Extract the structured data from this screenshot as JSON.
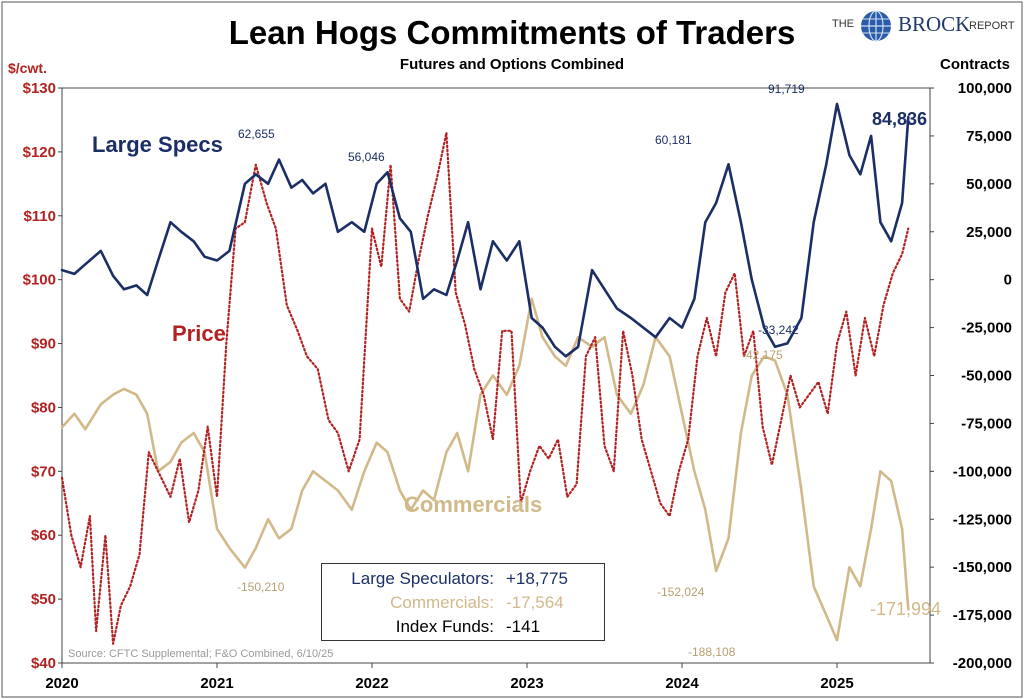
{
  "title": "Lean Hogs Commitments of Traders",
  "subtitle": "Futures and Options Combined",
  "unit_left": "$/cwt.",
  "unit_right": "Contracts",
  "logo": {
    "the": "THE",
    "brock": "BROCK",
    "report": "REPORT"
  },
  "labels": {
    "specs": "Large Specs",
    "price": "Price",
    "commercials": "Commercials"
  },
  "annotations": {
    "specs_peak_2021": "62,655",
    "specs_peak_2022": "56,046",
    "specs_peak_2024": "60,181",
    "specs_peak_2025": "91,719",
    "specs_low_2024": "-33,242",
    "specs_last": "84,836",
    "comm_low_2021": "-150,210",
    "comm_low_2024": "-152,024",
    "comm_low_2025": "-188,108",
    "comm_high_2024": "-42,175",
    "comm_last": "-171,994"
  },
  "legend": {
    "specs_label": "Large Speculators:",
    "specs_value": "+18,775",
    "comm_label": "Commercials:",
    "comm_value": "-17,564",
    "index_label": "Index Funds:",
    "index_value": "-141"
  },
  "source": "Source: CFTC Supplemental; F&O Combined, 6/10/25",
  "colors": {
    "specs": "#1b2f66",
    "price": "#b22222",
    "commercials": "#d2b98a",
    "axis_left": "#b22222",
    "axis_right": "#000000"
  },
  "chart_data": {
    "type": "line",
    "x_ticks": [
      "2020",
      "2021",
      "2022",
      "2023",
      "2024",
      "2025"
    ],
    "x_range": [
      2020.0,
      2025.6
    ],
    "y_left": {
      "label": "$/cwt.",
      "range": [
        40,
        130
      ],
      "ticks": [
        40,
        50,
        60,
        70,
        80,
        90,
        100,
        110,
        120,
        130
      ],
      "tick_labels": [
        "$40",
        "$50",
        "$60",
        "$70",
        "$80",
        "$90",
        "$100",
        "$110",
        "$120",
        "$130"
      ]
    },
    "y_right": {
      "label": "Contracts",
      "range": [
        -200000,
        100000
      ],
      "ticks": [
        -200000,
        -175000,
        -150000,
        -125000,
        -100000,
        -75000,
        -50000,
        -25000,
        0,
        25000,
        50000,
        75000,
        100000
      ],
      "tick_labels": [
        "-200,000",
        "-175,000",
        "-150,000",
        "-125,000",
        "-100,000",
        "-75,000",
        "-50,000",
        "-25,000",
        "0",
        "25,000",
        "50,000",
        "75,000",
        "100,000"
      ]
    },
    "grid": false,
    "series": [
      {
        "name": "Large Specs",
        "axis": "right",
        "style": "solid",
        "x": [
          2020.0,
          2020.08,
          2020.15,
          2020.25,
          2020.33,
          2020.4,
          2020.48,
          2020.55,
          2020.62,
          2020.7,
          2020.77,
          2020.85,
          2020.92,
          2021.0,
          2021.08,
          2021.18,
          2021.25,
          2021.33,
          2021.4,
          2021.48,
          2021.55,
          2021.62,
          2021.7,
          2021.78,
          2021.87,
          2021.95,
          2022.03,
          2022.1,
          2022.18,
          2022.25,
          2022.33,
          2022.4,
          2022.48,
          2022.55,
          2022.62,
          2022.7,
          2022.78,
          2022.87,
          2022.95,
          2023.03,
          2023.1,
          2023.18,
          2023.25,
          2023.33,
          2023.42,
          2023.5,
          2023.58,
          2023.67,
          2023.75,
          2023.83,
          2023.92,
          2024.0,
          2024.08,
          2024.15,
          2024.22,
          2024.3,
          2024.38,
          2024.45,
          2024.53,
          2024.6,
          2024.68,
          2024.77,
          2024.85,
          2024.93,
          2025.0,
          2025.08,
          2025.15,
          2025.22,
          2025.28,
          2025.35,
          2025.42,
          2025.46
        ],
        "y": [
          5000,
          3000,
          8000,
          15000,
          2000,
          -5000,
          -3000,
          -8000,
          10000,
          30000,
          25000,
          20000,
          12000,
          10000,
          15000,
          50000,
          55000,
          50000,
          62655,
          48000,
          52000,
          45000,
          50000,
          25000,
          30000,
          25000,
          50000,
          56046,
          32000,
          25000,
          -10000,
          -5000,
          -8000,
          10000,
          30000,
          -5000,
          20000,
          10000,
          20000,
          -20000,
          -25000,
          -35000,
          -40000,
          -35000,
          5000,
          -5000,
          -15000,
          -20000,
          -25000,
          -30000,
          -20000,
          -25000,
          -10000,
          30000,
          40000,
          60181,
          30000,
          0,
          -25000,
          -35000,
          -33242,
          -20000,
          30000,
          60000,
          91719,
          65000,
          55000,
          75000,
          30000,
          20000,
          40000,
          84836
        ]
      },
      {
        "name": "Commercials",
        "axis": "right",
        "style": "solid",
        "x": [
          2020.0,
          2020.08,
          2020.15,
          2020.25,
          2020.33,
          2020.4,
          2020.48,
          2020.55,
          2020.62,
          2020.7,
          2020.77,
          2020.85,
          2020.92,
          2021.0,
          2021.08,
          2021.18,
          2021.25,
          2021.33,
          2021.4,
          2021.48,
          2021.55,
          2021.62,
          2021.7,
          2021.78,
          2021.87,
          2021.95,
          2022.03,
          2022.1,
          2022.18,
          2022.25,
          2022.33,
          2022.4,
          2022.48,
          2022.55,
          2022.62,
          2022.7,
          2022.78,
          2022.87,
          2022.95,
          2023.03,
          2023.1,
          2023.18,
          2023.25,
          2023.33,
          2023.42,
          2023.5,
          2023.58,
          2023.67,
          2023.75,
          2023.83,
          2023.92,
          2024.0,
          2024.08,
          2024.15,
          2024.22,
          2024.3,
          2024.38,
          2024.45,
          2024.53,
          2024.6,
          2024.68,
          2024.77,
          2024.85,
          2024.93,
          2025.0,
          2025.08,
          2025.15,
          2025.22,
          2025.28,
          2025.35,
          2025.42,
          2025.46
        ],
        "y": [
          -77000,
          -70000,
          -78000,
          -65000,
          -60000,
          -57000,
          -60000,
          -70000,
          -100000,
          -95000,
          -85000,
          -80000,
          -90000,
          -130000,
          -140000,
          -150210,
          -140000,
          -125000,
          -135000,
          -130000,
          -110000,
          -100000,
          -105000,
          -110000,
          -120000,
          -100000,
          -85000,
          -90000,
          -110000,
          -120000,
          -110000,
          -115000,
          -90000,
          -80000,
          -100000,
          -60000,
          -50000,
          -60000,
          -45000,
          -10000,
          -30000,
          -40000,
          -45000,
          -30000,
          -35000,
          -30000,
          -60000,
          -70000,
          -55000,
          -30000,
          -40000,
          -70000,
          -100000,
          -120000,
          -152024,
          -135000,
          -80000,
          -50000,
          -40000,
          -42175,
          -60000,
          -110000,
          -160000,
          -175000,
          -188108,
          -150000,
          -160000,
          -130000,
          -100000,
          -105000,
          -130000,
          -171994
        ]
      },
      {
        "name": "Price",
        "axis": "left",
        "style": "dotted",
        "x": [
          2020.0,
          2020.06,
          2020.12,
          2020.18,
          2020.22,
          2020.28,
          2020.33,
          2020.38,
          2020.44,
          2020.5,
          2020.56,
          2020.62,
          2020.7,
          2020.76,
          2020.82,
          2020.88,
          2020.94,
          2021.0,
          2021.06,
          2021.12,
          2021.18,
          2021.25,
          2021.32,
          2021.38,
          2021.45,
          2021.52,
          2021.58,
          2021.65,
          2021.72,
          2021.78,
          2021.85,
          2021.92,
          2022.0,
          2022.06,
          2022.12,
          2022.18,
          2022.24,
          2022.3,
          2022.36,
          2022.42,
          2022.48,
          2022.54,
          2022.6,
          2022.66,
          2022.72,
          2022.78,
          2022.84,
          2022.9,
          2022.96,
          2023.02,
          2023.08,
          2023.14,
          2023.2,
          2023.26,
          2023.32,
          2023.38,
          2023.44,
          2023.5,
          2023.56,
          2023.62,
          2023.68,
          2023.74,
          2023.8,
          2023.86,
          2023.92,
          2023.98,
          2024.04,
          2024.1,
          2024.16,
          2024.22,
          2024.28,
          2024.34,
          2024.4,
          2024.46,
          2024.52,
          2024.58,
          2024.64,
          2024.7,
          2024.76,
          2024.82,
          2024.88,
          2024.94,
          2025.0,
          2025.06,
          2025.12,
          2025.18,
          2025.24,
          2025.3,
          2025.36,
          2025.42,
          2025.46
        ],
        "y": [
          69,
          60,
          55,
          63,
          45,
          60,
          43,
          49,
          52,
          57,
          73,
          70,
          66,
          72,
          62,
          67,
          77,
          66,
          90,
          108,
          109,
          118,
          112,
          108,
          96,
          92,
          88,
          86,
          78,
          76,
          70,
          75,
          108,
          102,
          118,
          97,
          95,
          103,
          110,
          116,
          123,
          98,
          93,
          86,
          82,
          75,
          92,
          92,
          65,
          70,
          74,
          72,
          75,
          66,
          68,
          88,
          91,
          74,
          70,
          92,
          85,
          75,
          70,
          65,
          63,
          70,
          75,
          88,
          94,
          88,
          98,
          101,
          88,
          92,
          77,
          71,
          78,
          85,
          80,
          82,
          84,
          79,
          90,
          95,
          85,
          94,
          88,
          96,
          101,
          104,
          108
        ]
      }
    ]
  }
}
